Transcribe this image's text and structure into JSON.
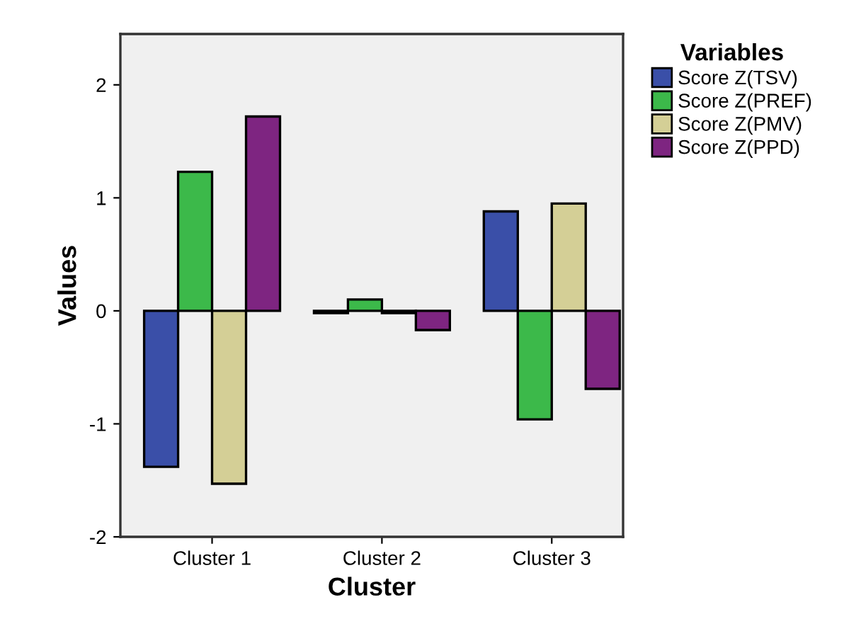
{
  "chart_data": {
    "type": "bar",
    "xlabel": "Cluster",
    "ylabel": "Values",
    "legend_title": "Variables",
    "categories": [
      "Cluster 1",
      "Cluster 2",
      "Cluster 3"
    ],
    "series": [
      {
        "name": "Score Z(TSV)",
        "color": "#3a4fa8",
        "values": [
          -1.38,
          -0.02,
          0.88
        ]
      },
      {
        "name": "Score Z(PREF)",
        "color": "#3cb94a",
        "values": [
          1.23,
          0.1,
          -0.96
        ]
      },
      {
        "name": "Score Z(PMV)",
        "color": "#d4cf96",
        "values": [
          -1.53,
          -0.02,
          0.95
        ]
      },
      {
        "name": "Score Z(PPD)",
        "color": "#7e2581",
        "values": [
          1.72,
          -0.17,
          -0.69
        ]
      }
    ],
    "ylim": [
      -2,
      2.45
    ],
    "yticks": [
      -2,
      -1,
      0,
      1,
      2
    ],
    "legend": "right"
  }
}
